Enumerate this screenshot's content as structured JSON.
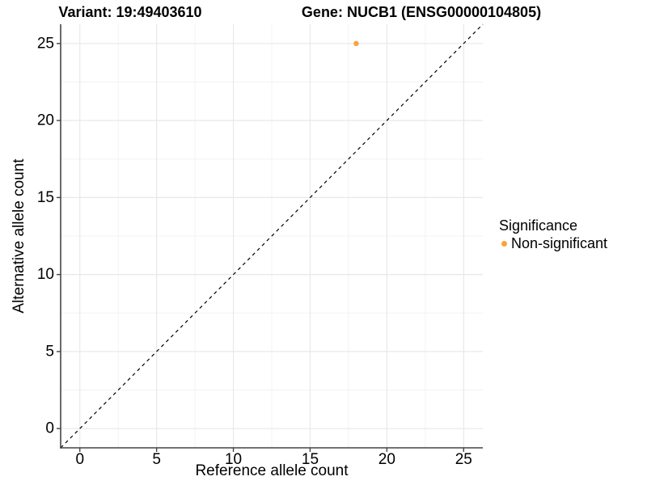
{
  "chart_data": {
    "type": "scatter",
    "titles": [
      "Variant: 19:49403610",
      "Gene: NUCB1 (ENSG00000104805)"
    ],
    "xlabel": "Reference allele count",
    "ylabel": "Alternative allele count",
    "xlim": [
      -1.25,
      26.25
    ],
    "ylim": [
      -1.25,
      26.25
    ],
    "x_ticks": [
      0,
      5,
      10,
      15,
      20,
      25
    ],
    "y_ticks": [
      0,
      5,
      10,
      15,
      20,
      25
    ],
    "x_minor_ticks": [
      2.5,
      7.5,
      12.5,
      17.5,
      22.5
    ],
    "y_minor_ticks": [
      2.5,
      7.5,
      12.5,
      17.5,
      22.5
    ],
    "grid": "major+minor",
    "reference_line": {
      "kind": "identity y=x",
      "from": -1.25,
      "to": 26.25,
      "style": "dashed",
      "color": "#000000"
    },
    "series": [
      {
        "name": "Non-significant",
        "color": "#F7A43C",
        "points": [
          [
            18,
            25
          ]
        ]
      }
    ],
    "legend": {
      "title": "Significance",
      "position": "right",
      "items": [
        {
          "label": "Non-significant",
          "color": "#F7A43C",
          "marker": "circle"
        }
      ]
    },
    "style": {
      "axis_line_color": "#444444",
      "grid_major_color": "#E8E8E8",
      "grid_minor_color": "#F3F3F3",
      "tick_label_color": "#000000",
      "tick_label_size": 19,
      "point_radius": 3.2,
      "tick_length": 5
    }
  }
}
